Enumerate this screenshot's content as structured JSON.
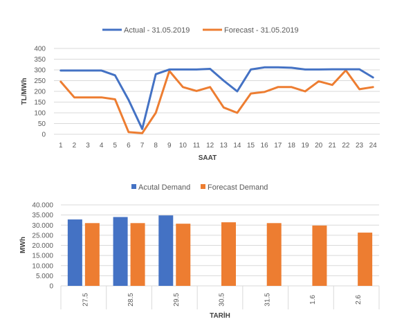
{
  "colors": {
    "actual": "#4472c4",
    "forecast": "#ed7d31",
    "grid": "#d9d9d9",
    "text": "#595959"
  },
  "chart_data": [
    {
      "type": "line",
      "legend": [
        "Actual - 31.05.2019",
        "Forecast - 31.05.2019"
      ],
      "legend_position": "top",
      "xlabel": "SAAT",
      "ylabel": "TL/MWh",
      "ylim": [
        0,
        400
      ],
      "yticks": [
        "0",
        "50",
        "100",
        "150",
        "200",
        "250",
        "300",
        "350",
        "400"
      ],
      "grid": true,
      "x": [
        "1",
        "2",
        "3",
        "4",
        "5",
        "6",
        "7",
        "8",
        "9",
        "10",
        "11",
        "12",
        "13",
        "14",
        "15",
        "16",
        "17",
        "18",
        "19",
        "20",
        "21",
        "22",
        "23",
        "24"
      ],
      "series": [
        {
          "name": "Actual - 31.05.2019",
          "values": [
            297,
            297,
            297,
            297,
            275,
            160,
            25,
            280,
            302,
            302,
            302,
            305,
            250,
            200,
            302,
            312,
            312,
            310,
            302,
            302,
            303,
            303,
            303,
            265
          ]
        },
        {
          "name": "Forecast - 31.05.2019",
          "values": [
            245,
            172,
            172,
            172,
            163,
            10,
            5,
            100,
            295,
            220,
            202,
            220,
            125,
            100,
            190,
            197,
            220,
            220,
            200,
            247,
            230,
            298,
            210,
            220
          ]
        }
      ]
    },
    {
      "type": "bar",
      "legend": [
        "Acutal Demand",
        "Forecast Demand"
      ],
      "legend_position": "top",
      "xlabel": "TARİH",
      "ylabel": "MWh",
      "ylim": [
        0,
        40000
      ],
      "yticks": [
        "0",
        "5.000",
        "10.000",
        "15.000",
        "20.000",
        "25.000",
        "30.000",
        "35.000",
        "40.000"
      ],
      "grid": true,
      "categories": [
        "27.5",
        "28.5",
        "29.5",
        "30.5",
        "31.5",
        "1.6",
        "2.6"
      ],
      "series": [
        {
          "name": "Acutal Demand",
          "values": [
            32800,
            34000,
            34800,
            null,
            null,
            null,
            null
          ]
        },
        {
          "name": "Forecast Demand",
          "values": [
            31000,
            31000,
            30700,
            31400,
            31000,
            29800,
            26300
          ]
        }
      ]
    }
  ]
}
